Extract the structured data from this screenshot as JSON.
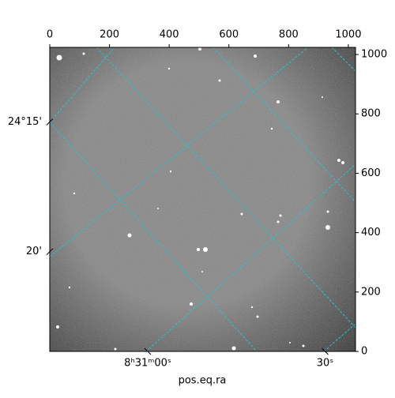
{
  "chart_data": {
    "type": "image",
    "xlabel": "pos.eq.ra",
    "xlim": [
      0,
      1024
    ],
    "xticks": [
      0,
      200,
      400,
      600,
      800,
      1000
    ],
    "ylim": [
      0,
      1024
    ],
    "yticks": [
      0,
      200,
      400,
      600,
      800,
      1000
    ],
    "ra_ticks": [
      {
        "value": 328,
        "label": "8ʰ31ᵐ00ˢ"
      },
      {
        "value": 922,
        "label": "30ˢ"
      }
    ],
    "dec_ticks": [
      {
        "value": 773,
        "label": "24°15'"
      },
      {
        "value": 336,
        "label": "20'"
      }
    ],
    "grid_color": "#20c8c8"
  }
}
